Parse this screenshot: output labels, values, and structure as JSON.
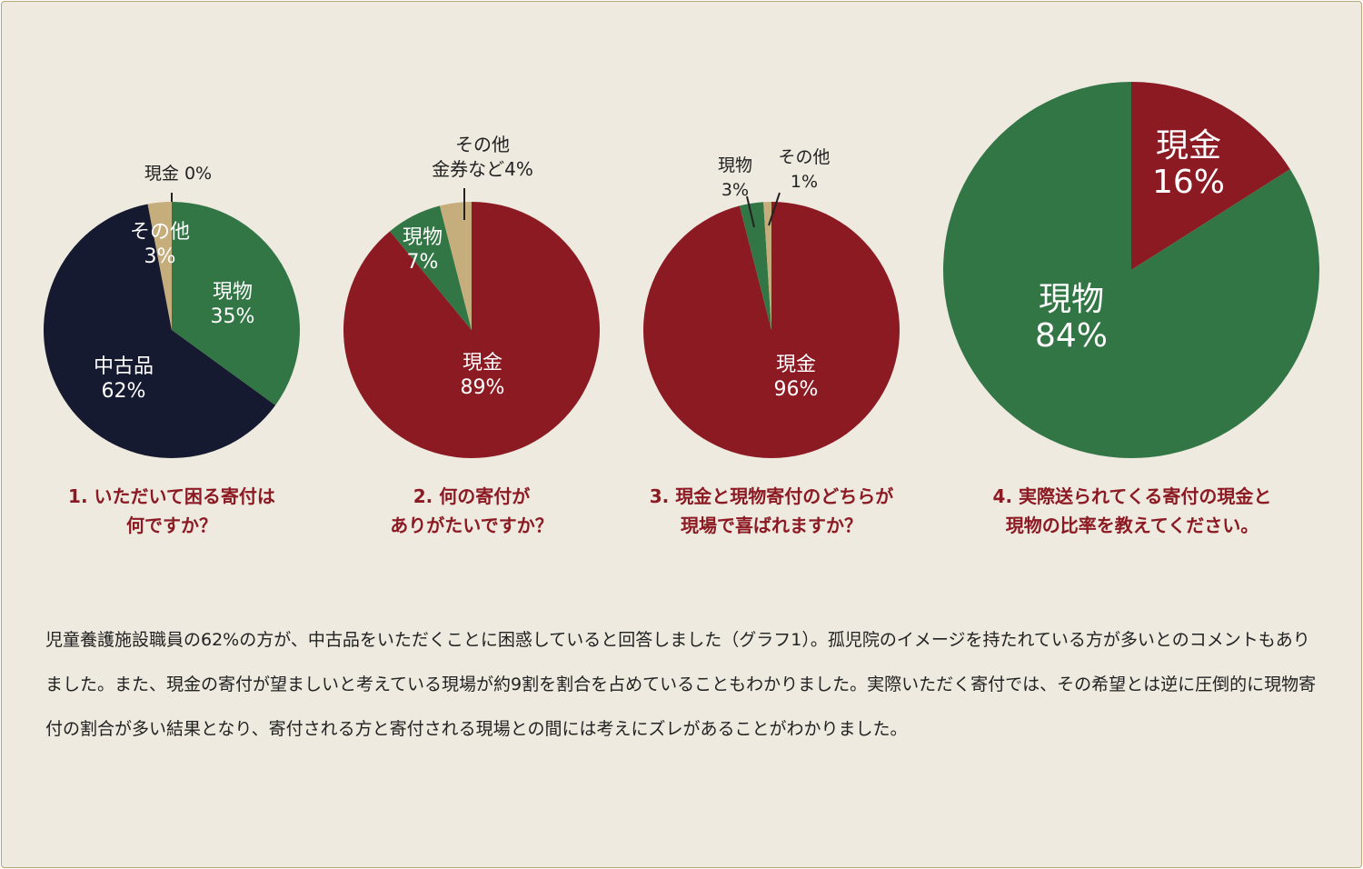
{
  "colors": {
    "cash": "#8c1a23",
    "goods": "#337645",
    "other": "#c6ad7c",
    "used_goods": "#161a30",
    "caption": "#8c1a23",
    "background": "#eeeae0"
  },
  "chart_data": [
    {
      "type": "pie",
      "title": "1. いただいて困る寄付は\n何ですか？",
      "slices": [
        {
          "label": "現物",
          "value": 35,
          "value_label": "35%",
          "color": "#337645"
        },
        {
          "label": "中古品",
          "value": 62,
          "value_label": "62%",
          "color": "#161a30"
        },
        {
          "label": "その他",
          "value": 3,
          "value_label": "3%",
          "color": "#c6ad7c"
        },
        {
          "label": "現金",
          "value": 0,
          "value_label": "0%",
          "color": "#8c1a23"
        }
      ]
    },
    {
      "type": "pie",
      "title": "2. 何の寄付が\nありがたいですか？",
      "slices": [
        {
          "label": "現金",
          "value": 89,
          "value_label": "89%",
          "color": "#8c1a23"
        },
        {
          "label": "現物",
          "value": 7,
          "value_label": "7%",
          "color": "#337645"
        },
        {
          "label": "その他\n金券など",
          "value": 4,
          "value_label": "4%",
          "color": "#c6ad7c"
        }
      ]
    },
    {
      "type": "pie",
      "title": "3. 現金と現物寄付のどちらが\n現場で喜ばれますか？",
      "slices": [
        {
          "label": "現金",
          "value": 96,
          "value_label": "96%",
          "color": "#8c1a23"
        },
        {
          "label": "現物",
          "value": 3,
          "value_label": "3%",
          "color": "#337645"
        },
        {
          "label": "その他",
          "value": 1,
          "value_label": "1%",
          "color": "#c6ad7c"
        }
      ]
    },
    {
      "type": "pie",
      "title": "4. 実際送られてくる寄付の現金と\n現物の比率を教えてください。",
      "slices": [
        {
          "label": "現金",
          "value": 16,
          "value_label": "16%",
          "color": "#8c1a23"
        },
        {
          "label": "現物",
          "value": 84,
          "value_label": "84%",
          "color": "#337645"
        }
      ]
    }
  ],
  "description": "児童養護施設職員の62%の方が、中古品をいただくことに困惑していると回答しました（グラフ1）。孤児院のイメージを持たれている方が多いとのコメントもありました。また、現金の寄付が望ましいと考えている現場が約9割を割合を占めていることもわかりました。実際いただく寄付では、その希望とは逆に圧倒的に現物寄付の割合が多い結果となり、寄付される方と寄付される現場との間には考えにズレがあることがわかりました。"
}
